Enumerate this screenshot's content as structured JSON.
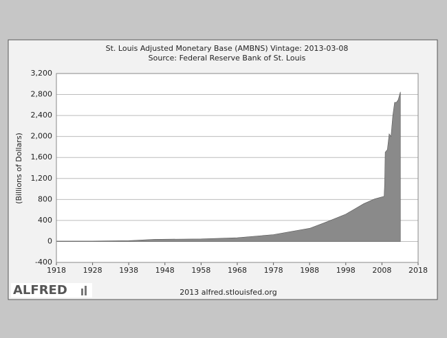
{
  "chart_data": {
    "type": "area",
    "title": "St. Louis Adjusted Monetary Base (AMBNS) Vintage: 2013-03-08",
    "subtitle": "Source: Federal Reserve Bank of St. Louis",
    "y_label": "(Billions of Dollars)",
    "footer": "2013 alfred.stlouisfed.org",
    "logo": "ALFRED",
    "x": [
      1918,
      1928,
      1938,
      1940,
      1945,
      1958,
      1968,
      1978,
      1988,
      1993,
      1998,
      2000,
      2003,
      2006,
      2008.6,
      2008.75,
      2008.9,
      2009.5,
      2010,
      2010.5,
      2011,
      2011.5,
      2012,
      2012.5,
      2013.1
    ],
    "series": [
      {
        "name": "AMBNS",
        "color": "#8a8a8a",
        "values": [
          6,
          7,
          15,
          22,
          40,
          48,
          70,
          130,
          250,
          380,
          520,
          600,
          720,
          810,
          860,
          1100,
          1700,
          1750,
          2050,
          2000,
          2400,
          2650,
          2650,
          2700,
          2850
        ]
      }
    ],
    "xlim": [
      1918,
      2018
    ],
    "xticks": [
      1918,
      1928,
      1938,
      1948,
      1958,
      1968,
      1978,
      1988,
      1998,
      2008,
      2018
    ],
    "ylim": [
      -400,
      3200
    ],
    "yticks": [
      -400,
      0,
      400,
      800,
      {
        "value": 1200,
        "label": "1,200"
      },
      {
        "value": 1600,
        "label": "1,600"
      },
      {
        "value": 2000,
        "label": "2,000"
      },
      {
        "value": 2400,
        "label": "2,400"
      },
      {
        "value": 2800,
        "label": "2,800"
      },
      {
        "value": 3200,
        "label": "3,200"
      }
    ],
    "grid": true
  }
}
